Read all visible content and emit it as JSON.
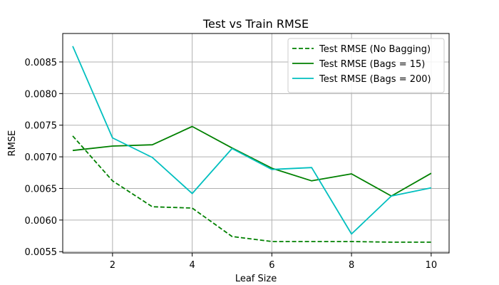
{
  "chart_data": {
    "type": "line",
    "title": "Test vs Train RMSE",
    "xlabel": "Leaf Size",
    "ylabel": "RMSE",
    "xlim": [
      0.75,
      10.45
    ],
    "ylim": [
      0.00548,
      0.00895
    ],
    "xticks": [
      2,
      4,
      6,
      8,
      10
    ],
    "xtick_labels": [
      "2",
      "4",
      "6",
      "8",
      "10"
    ],
    "yticks": [
      0.0055,
      0.006,
      0.0065,
      0.007,
      0.0075,
      0.008,
      0.0085
    ],
    "ytick_labels": [
      "0.0055",
      "0.0060",
      "0.0065",
      "0.0070",
      "0.0075",
      "0.0080",
      "0.0085"
    ],
    "grid": true,
    "legend_position": "top-right",
    "x": [
      1,
      2,
      3,
      4,
      5,
      6,
      7,
      8,
      9,
      10
    ],
    "series": [
      {
        "name": "Test RMSE (No Bagging)",
        "color": "#008000",
        "dash": "dashed",
        "values": [
          0.00733,
          0.00662,
          0.00621,
          0.00619,
          0.00574,
          0.00566,
          0.00566,
          0.00566,
          0.00565,
          0.00565
        ]
      },
      {
        "name": "Test RMSE (Bags = 15)",
        "color": "#008000",
        "dash": "solid",
        "values": [
          0.0071,
          0.00717,
          0.00719,
          0.00748,
          0.00714,
          0.00682,
          0.00662,
          0.00673,
          0.00638,
          0.00674
        ]
      },
      {
        "name": "Test RMSE (Bags = 200)",
        "color": "#00bfbf",
        "dash": "solid",
        "values": [
          0.00875,
          0.0073,
          0.00699,
          0.00642,
          0.00713,
          0.0068,
          0.00683,
          0.00578,
          0.00638,
          0.00651
        ]
      }
    ]
  }
}
